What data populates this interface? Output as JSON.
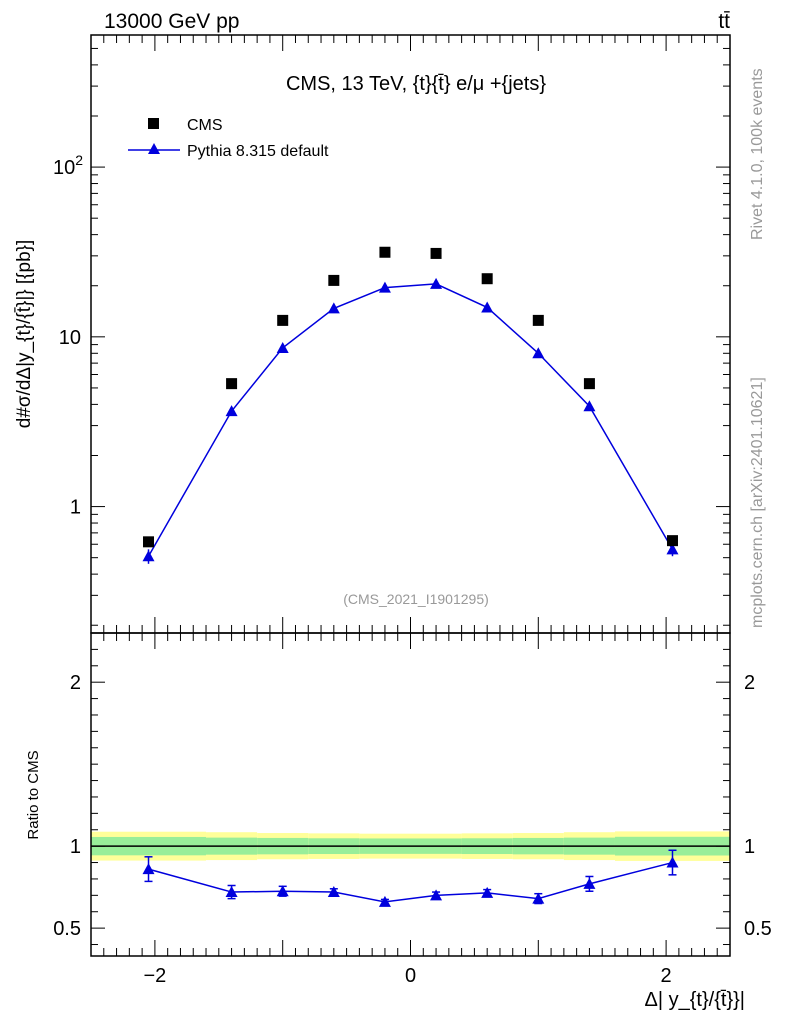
{
  "header": {
    "energy_label": "13000 GeV pp",
    "process_label": "tt̄"
  },
  "side_labels": {
    "rivet": "Rivet 4.1.0,  100k events",
    "mcplots": "mcplots.cern.ch [arXiv:2401.10621]"
  },
  "chart_data": [
    {
      "type": "scatter",
      "title": "CMS, 13 TeV, {t}{t̄} e/μ +{jets}",
      "watermark": "(CMS_2021_I1901295)",
      "ylabel": "d#σ/dΔ|y_{t}/{t̄}|} [{pb}]",
      "xlabel": "",
      "yscale": "log",
      "ylim": [
        0.18,
        600
      ],
      "xlim": [
        -2.5,
        2.5
      ],
      "ytick_labels": [
        "1",
        "10",
        "10^2"
      ],
      "x": [
        -2.05,
        -1.4,
        -1.0,
        -0.6,
        -0.2,
        0.2,
        0.6,
        1.0,
        1.4,
        2.05
      ],
      "legend_position": "top-left",
      "series": [
        {
          "name": "CMS",
          "color": "#000000",
          "marker": "square",
          "values": [
            0.62,
            5.3,
            12.5,
            21.5,
            31.5,
            31.0,
            22.0,
            12.5,
            5.3,
            0.63
          ]
        },
        {
          "name": "Pythia 8.315 default",
          "color": "#0000dd",
          "marker": "triangle",
          "values": [
            0.51,
            3.65,
            8.6,
            14.7,
            19.5,
            20.5,
            14.9,
            8.0,
            3.9,
            0.56
          ],
          "errors": [
            0.05,
            0.12,
            0.2,
            0.3,
            0.35,
            0.35,
            0.3,
            0.2,
            0.12,
            0.05
          ]
        }
      ]
    },
    {
      "type": "line",
      "ylabel": "Ratio to CMS",
      "xlabel": "Δ| y_{t}/{t̄}}|",
      "ylim": [
        0.33,
        2.3
      ],
      "xlim": [
        -2.5,
        2.5
      ],
      "ytick_labels": [
        "0.5",
        "1",
        "2"
      ],
      "xtick_labels": [
        "−2",
        "0",
        "2"
      ],
      "x": [
        -2.05,
        -1.4,
        -1.0,
        -0.6,
        -0.2,
        0.2,
        0.6,
        1.0,
        1.4,
        2.05
      ],
      "reference_line": 1.0,
      "bands": {
        "edges": [
          -2.5,
          -1.6,
          -1.2,
          -0.8,
          -0.4,
          0.0,
          0.4,
          0.8,
          1.2,
          1.6,
          2.5
        ],
        "outer_color": "#ffff99",
        "inner_color": "#99ee99",
        "outer": [
          0.088,
          0.085,
          0.08,
          0.078,
          0.076,
          0.076,
          0.078,
          0.08,
          0.085,
          0.09
        ],
        "inner": [
          0.056,
          0.052,
          0.05,
          0.048,
          0.047,
          0.047,
          0.048,
          0.05,
          0.052,
          0.057
        ]
      },
      "series": [
        {
          "name": "Pythia 8.315 default",
          "color": "#0000dd",
          "values": [
            0.86,
            0.72,
            0.725,
            0.72,
            0.66,
            0.7,
            0.715,
            0.68,
            0.77,
            0.9
          ],
          "errors": [
            0.075,
            0.04,
            0.03,
            0.02,
            0.015,
            0.02,
            0.02,
            0.03,
            0.045,
            0.075
          ]
        }
      ]
    }
  ]
}
